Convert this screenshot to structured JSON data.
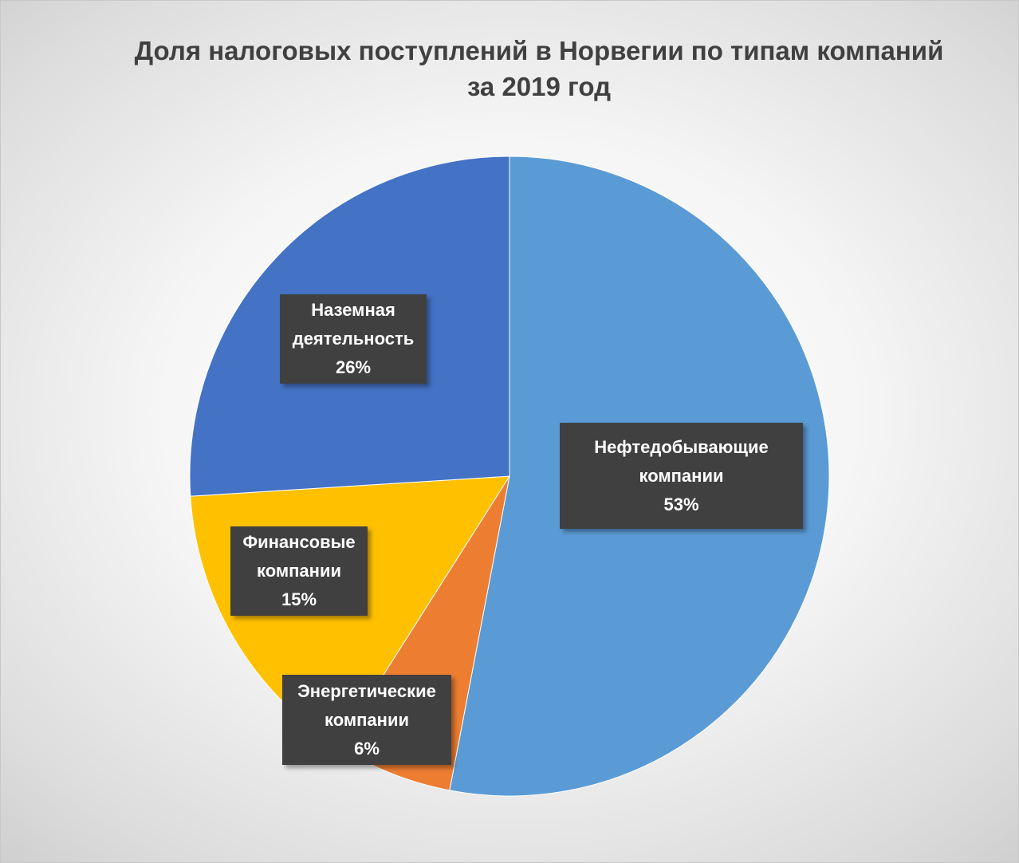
{
  "chart_data": {
    "type": "pie",
    "title": [
      "Доля налоговых поступлений в Норвегии по типам компаний",
      "за 2019 год"
    ],
    "slices": [
      {
        "label": [
          "Нефтедобывающие",
          "компании"
        ],
        "value": 53,
        "value_label": "53%",
        "color": "#5B9BD5"
      },
      {
        "label": [
          "Энергетические",
          "компании"
        ],
        "value": 6,
        "value_label": "6%",
        "color": "#ED7D31"
      },
      {
        "label": [
          "Финансовые",
          "компании"
        ],
        "value": 15,
        "value_label": "15%",
        "color": "#FFC000"
      },
      {
        "label": [
          "Наземная",
          "деятельность"
        ],
        "value": 26,
        "value_label": "26%",
        "color": "#4472C4"
      }
    ],
    "start_angle": "12 o'clock",
    "direction": "clockwise",
    "legend": "none"
  }
}
